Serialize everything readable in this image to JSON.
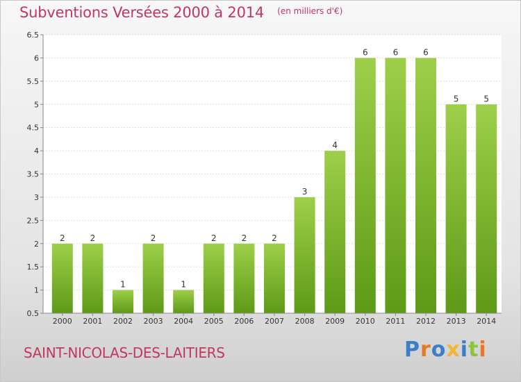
{
  "header": {
    "title": "Subventions Versées 2000 à 2014",
    "unit": "(en milliers d'€)"
  },
  "footer": {
    "commune": "SAINT-NICOLAS-DES-LAITIERS",
    "brand": "Proxiti",
    "brand_colors": [
      "#3a7fc8",
      "#e8772a",
      "#3a7fc8",
      "#f2b631",
      "#3a7fc8",
      "#8cc43c",
      "#e8772a"
    ]
  },
  "chart_data": {
    "type": "bar",
    "title": "Subventions Versées 2000 à 2014",
    "subtitle": "(en milliers d'€)",
    "categories": [
      "2000",
      "2001",
      "2002",
      "2003",
      "2004",
      "2005",
      "2006",
      "2007",
      "2008",
      "2009",
      "2010",
      "2011",
      "2012",
      "2013",
      "2014"
    ],
    "values": [
      2,
      2,
      1,
      2,
      1,
      2,
      2,
      2,
      3,
      4,
      6,
      6,
      6,
      5,
      5
    ],
    "value_labels": [
      "2",
      "2",
      "1",
      "2",
      "1",
      "2",
      "2",
      "2",
      "3",
      "4",
      "6",
      "6",
      "6",
      "5",
      "5"
    ],
    "ylim": [
      0.5,
      6.5
    ],
    "yticks": [
      0.5,
      1,
      1.5,
      2,
      2.5,
      3,
      3.5,
      4,
      4.5,
      5,
      5.5,
      6,
      6.5
    ],
    "ytick_labels": [
      "0.5",
      "1",
      "1.5",
      "2",
      "2.5",
      "3",
      "3.5",
      "4",
      "4.5",
      "5",
      "5.5",
      "6",
      "6.5"
    ],
    "grid": true,
    "bar_color_top": "#9ecf4a",
    "bar_color_bottom": "#5d9a17"
  }
}
